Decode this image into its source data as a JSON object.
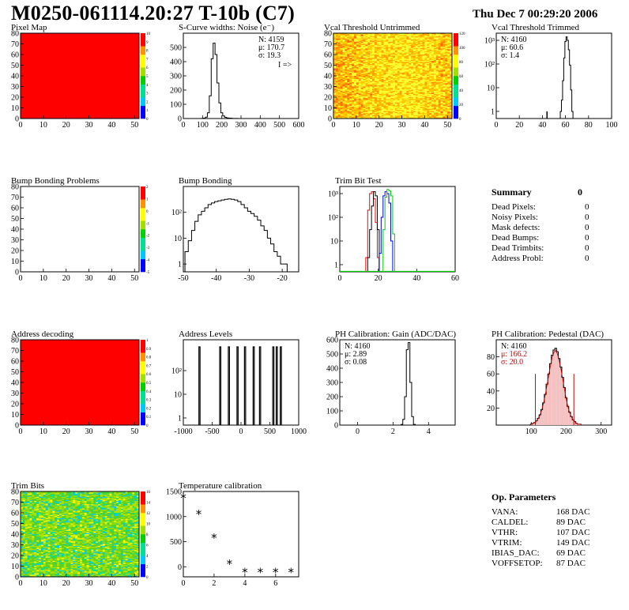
{
  "header": {
    "title": "M0250-061114.20:27 T-10b (C7)",
    "date": "Thu Dec  7 00:29:20 2006"
  },
  "colors": {
    "map_red": "#ff0000",
    "trim_red": "#ff0000",
    "trim_blue": "#0000ff",
    "trim_green": "#00d000",
    "fit_red": "#cc0000"
  },
  "summary": {
    "title": "Summary",
    "total": "0",
    "rows": [
      {
        "label": "Dead Pixels:",
        "value": "0"
      },
      {
        "label": "Noisy Pixels:",
        "value": "0"
      },
      {
        "label": "Mask defects:",
        "value": "0"
      },
      {
        "label": "Dead Bumps:",
        "value": "0"
      },
      {
        "label": "Dead Trimbits:",
        "value": "0"
      },
      {
        "label": "Address Probl:",
        "value": "0"
      }
    ]
  },
  "op_params": {
    "title": "Op. Parameters",
    "rows": [
      {
        "label": "VANA:",
        "value": "168 DAC"
      },
      {
        "label": "CALDEL:",
        "value": "89 DAC"
      },
      {
        "label": "VTHR:",
        "value": "107 DAC"
      },
      {
        "label": "VTRIM:",
        "value": "149 DAC"
      },
      {
        "label": "IBIAS_DAC:",
        "value": "69 DAC"
      },
      {
        "label": "VOFFSETOP:",
        "value": "87 DAC"
      }
    ]
  },
  "chart_data": [
    {
      "id": "pixel-map",
      "type": "heatmap",
      "title": "Pixel Map",
      "xlim": [
        0,
        52
      ],
      "ylim": [
        0,
        80
      ],
      "xticks": [
        0,
        10,
        20,
        30,
        40,
        50
      ],
      "xtick_labels": [
        "0",
        "10",
        "20",
        "30",
        "40",
        "50"
      ],
      "yticks": [
        0,
        10,
        20,
        30,
        40,
        50,
        60,
        70,
        80
      ],
      "ytick_labels": [
        "0",
        "10",
        "20",
        "30",
        "40",
        "50",
        "60",
        "70",
        "80"
      ],
      "fill": "uniform-red",
      "palette_labels": [
        "0",
        "1",
        "2",
        "3",
        "4",
        "5",
        "6",
        "7",
        "8",
        "9",
        "10"
      ],
      "zlim": [
        0,
        10
      ]
    },
    {
      "id": "scurve",
      "type": "bar",
      "title": "S-Curve widths: Noise (e⁻)",
      "xlim": [
        0,
        600
      ],
      "ylim": [
        0,
        600
      ],
      "xticks": [
        0,
        100,
        200,
        300,
        400,
        500,
        600
      ],
      "xtick_labels": [
        "0",
        "100",
        "200",
        "300",
        "400",
        "500",
        "600"
      ],
      "yticks": [
        0,
        100,
        200,
        300,
        400,
        500
      ],
      "ytick_labels": [
        "0",
        "100",
        "200",
        "300",
        "400",
        "500"
      ],
      "x": [
        100,
        110,
        120,
        130,
        140,
        150,
        160,
        170,
        180,
        190,
        200,
        210,
        220,
        230,
        240,
        250,
        260,
        270,
        280,
        290,
        300
      ],
      "values": [
        1,
        3,
        10,
        40,
        160,
        420,
        530,
        450,
        250,
        110,
        40,
        18,
        8,
        4,
        3,
        2,
        1,
        1,
        1,
        0,
        0
      ],
      "stats": [
        "N: 4159",
        "μ: 170.7",
        "σ: 19.3"
      ],
      "note": "I =>"
    },
    {
      "id": "vcal-untrimmed",
      "type": "heatmap",
      "title": "Vcal Threshold Untrimmed",
      "xlim": [
        0,
        52
      ],
      "ylim": [
        0,
        80
      ],
      "xticks": [
        0,
        10,
        20,
        30,
        40,
        50
      ],
      "xtick_labels": [
        "0",
        "10",
        "20",
        "30",
        "40",
        "50"
      ],
      "yticks": [
        0,
        10,
        20,
        30,
        40,
        50,
        60,
        70,
        80
      ],
      "ytick_labels": [
        "0",
        "10",
        "20",
        "30",
        "40",
        "50",
        "60",
        "70",
        "80"
      ],
      "fill": "noise-orange-yellow",
      "palette_labels": [
        "0",
        "20",
        "40",
        "60",
        "80",
        "100",
        "120"
      ],
      "zlim": [
        0,
        130
      ]
    },
    {
      "id": "vcal-trimmed",
      "type": "bar",
      "title": "Vcal Threshold Trimmed",
      "log": true,
      "xlim": [
        0,
        100
      ],
      "ylim": [
        0.5,
        2000
      ],
      "xticks": [
        0,
        20,
        40,
        60,
        80,
        100
      ],
      "xtick_labels": [
        "0",
        "20",
        "40",
        "60",
        "80",
        "100"
      ],
      "yticks": [
        1,
        10,
        100,
        1000
      ],
      "ytick_labels": [
        "1",
        "10",
        "10²",
        "10³"
      ],
      "x": [
        44,
        56,
        57,
        58,
        59,
        60,
        61,
        62,
        63,
        64,
        65,
        66
      ],
      "values": [
        1,
        1,
        3,
        20,
        180,
        900,
        1400,
        1000,
        400,
        90,
        8,
        1
      ],
      "stats": [
        "N: 4160",
        "μ: 60.6",
        "σ:  1.4"
      ]
    },
    {
      "id": "bump-problems",
      "type": "heatmap",
      "title": "Bump Bonding Problems",
      "xlim": [
        0,
        52
      ],
      "ylim": [
        0,
        80
      ],
      "xticks": [
        0,
        10,
        20,
        30,
        40,
        50
      ],
      "xtick_labels": [
        "0",
        "10",
        "20",
        "30",
        "40",
        "50"
      ],
      "yticks": [
        0,
        10,
        20,
        30,
        40,
        50,
        60,
        70,
        80
      ],
      "ytick_labels": [
        "0",
        "10",
        "20",
        "30",
        "40",
        "50",
        "60",
        "70",
        "80"
      ],
      "fill": "empty",
      "palette_labels": [
        "-5",
        "-4",
        "-3",
        "-2",
        "-1",
        "0",
        "1",
        "2"
      ],
      "zlim": [
        -5,
        2
      ]
    },
    {
      "id": "bump-bonding",
      "type": "bar",
      "title": "Bump Bonding",
      "log": true,
      "xlim": [
        -50,
        -15
      ],
      "ylim": [
        0.5,
        1000
      ],
      "xticks": [
        -50,
        -40,
        -30,
        -20
      ],
      "xtick_labels": [
        "-50",
        "-40",
        "-30",
        "-20"
      ],
      "yticks": [
        1,
        10,
        100
      ],
      "ytick_labels": [
        "1",
        "10",
        "10²"
      ],
      "x": [
        -49,
        -48,
        -47,
        -46,
        -45,
        -44,
        -43,
        -42,
        -41,
        -40,
        -39,
        -38,
        -37,
        -36,
        -35,
        -34,
        -33,
        -32,
        -31,
        -30,
        -29,
        -28,
        -27,
        -26,
        -25,
        -24,
        -23,
        -22,
        -21,
        -20,
        -19,
        -18
      ],
      "values": [
        3,
        8,
        20,
        45,
        80,
        110,
        150,
        200,
        230,
        260,
        280,
        300,
        320,
        330,
        320,
        300,
        260,
        200,
        150,
        110,
        90,
        70,
        50,
        30,
        20,
        10,
        6,
        3,
        2,
        1,
        1,
        0
      ],
      "stats": []
    },
    {
      "id": "trim-bit",
      "type": "line",
      "title": "Trim Bit Test",
      "log": true,
      "xlim": [
        0,
        60
      ],
      "ylim": [
        0.5,
        2000
      ],
      "xticks": [
        0,
        20,
        40,
        60
      ],
      "xtick_labels": [
        "0",
        "20",
        "40",
        "60"
      ],
      "yticks": [
        1,
        10,
        100,
        1000
      ],
      "ytick_labels": [
        "1",
        "10",
        "10²",
        "10³"
      ],
      "x": [
        10,
        11,
        12,
        13,
        14,
        15,
        16,
        17,
        18,
        19,
        20,
        21,
        22,
        23,
        24,
        25,
        26,
        27,
        28,
        29,
        30
      ],
      "series": [
        {
          "values": [
            0,
            0,
            0,
            0,
            2,
            200,
            1000,
            1200,
            600,
            60,
            2,
            0,
            0,
            0,
            0,
            0,
            0,
            0,
            0,
            0,
            0
          ]
        },
        {
          "values": [
            0,
            0,
            0,
            0,
            0,
            2,
            30,
            300,
            1200,
            800,
            30,
            0,
            0,
            0,
            0,
            0,
            0,
            0,
            0,
            0,
            0
          ]
        },
        {
          "values": [
            0,
            0,
            0,
            0,
            0,
            0,
            0,
            0,
            0,
            0,
            0,
            3,
            100,
            800,
            1200,
            1000,
            400,
            10,
            0,
            0,
            0
          ]
        },
        {
          "values": [
            0,
            0,
            0,
            0,
            0,
            0,
            0,
            0,
            0,
            0,
            0,
            0,
            0,
            30,
            700,
            1500,
            1300,
            800,
            20,
            0,
            0
          ]
        }
      ],
      "stats": []
    },
    {
      "id": "address-decoding",
      "type": "heatmap",
      "title": "Address decoding",
      "xlim": [
        0,
        52
      ],
      "ylim": [
        0,
        80
      ],
      "xticks": [
        0,
        10,
        20,
        30,
        40,
        50
      ],
      "xtick_labels": [
        "0",
        "10",
        "20",
        "30",
        "40",
        "50"
      ],
      "yticks": [
        0,
        10,
        20,
        30,
        40,
        50,
        60,
        70,
        80
      ],
      "ytick_labels": [
        "0",
        "10",
        "20",
        "30",
        "40",
        "50",
        "60",
        "70",
        "80"
      ],
      "fill": "uniform-red",
      "palette_labels": [
        "0",
        "0.1",
        "0.2",
        "0.3",
        "0.4",
        "0.5",
        "0.6",
        "0.7",
        "0.8",
        "0.9",
        "1"
      ],
      "zlim": [
        0,
        1
      ]
    },
    {
      "id": "address-levels",
      "type": "bar",
      "title": "Address Levels",
      "log": true,
      "xlim": [
        -1000,
        1000
      ],
      "ylim": [
        0.5,
        2000
      ],
      "xticks": [
        -1000,
        -500,
        0,
        500,
        1000
      ],
      "xtick_labels": [
        "-1000",
        "-500",
        "0",
        "500",
        "1000"
      ],
      "yticks": [
        1,
        10,
        100
      ],
      "ytick_labels": [
        "1",
        "10",
        "10²"
      ],
      "peaks": [
        -720,
        -360,
        -210,
        -60,
        70,
        220,
        330,
        560,
        620,
        690
      ],
      "peak_height": 1000,
      "stats": []
    },
    {
      "id": "ph-gain",
      "type": "bar",
      "title": "PH Calibration: Gain (ADC/DAC)",
      "xlim": [
        -1,
        5.5
      ],
      "ylim": [
        0,
        600
      ],
      "xticks": [
        0,
        2,
        4
      ],
      "xtick_labels": [
        "0",
        "2",
        "4"
      ],
      "yticks": [
        0,
        100,
        200,
        300,
        400,
        500,
        600
      ],
      "ytick_labels": [
        "0",
        "100",
        "200",
        "300",
        "400",
        "500",
        "600"
      ],
      "x": [
        2.5,
        2.6,
        2.7,
        2.8,
        2.9,
        3.0,
        3.1,
        3.2
      ],
      "values": [
        5,
        40,
        200,
        530,
        580,
        300,
        60,
        5
      ],
      "stats": [
        "N: 4160",
        "μ: 2.89",
        "σ: 0.08"
      ]
    },
    {
      "id": "ph-pedestal",
      "type": "bar",
      "title": "PH Calibration: Pedestal (DAC)",
      "xlim": [
        0,
        330
      ],
      "ylim": [
        0,
        100
      ],
      "xticks": [
        100,
        200,
        300
      ],
      "xtick_labels": [
        "100",
        "200",
        "300"
      ],
      "yticks": [
        20,
        40,
        60,
        80
      ],
      "ytick_labels": [
        "20",
        "40",
        "60",
        "80"
      ],
      "x": [
        100,
        105,
        110,
        115,
        120,
        125,
        130,
        135,
        140,
        145,
        150,
        155,
        160,
        165,
        170,
        175,
        180,
        185,
        190,
        195,
        200,
        205,
        210,
        215,
        220,
        225,
        230,
        235,
        240,
        245
      ],
      "values": [
        1,
        2,
        3,
        5,
        8,
        12,
        18,
        26,
        36,
        48,
        60,
        72,
        82,
        88,
        90,
        86,
        78,
        68,
        56,
        44,
        32,
        22,
        15,
        10,
        6,
        4,
        2,
        1,
        1,
        0
      ],
      "fit_lines": [
        112,
        222
      ],
      "stats": [
        "N: 4160",
        "μ: 166.2",
        "σ: 20.0"
      ]
    },
    {
      "id": "trim-bits-map",
      "type": "heatmap",
      "title": "Trim Bits",
      "xlim": [
        0,
        52
      ],
      "ylim": [
        0,
        80
      ],
      "xticks": [
        0,
        10,
        20,
        30,
        40,
        50
      ],
      "xtick_labels": [
        "0",
        "10",
        "20",
        "30",
        "40",
        "50"
      ],
      "yticks": [
        0,
        10,
        20,
        30,
        40,
        50,
        60,
        70,
        80
      ],
      "ytick_labels": [
        "0",
        "10",
        "20",
        "30",
        "40",
        "50",
        "60",
        "70",
        "80"
      ],
      "fill": "noise-green-yellow",
      "palette_labels": [
        "0",
        "2",
        "4",
        "6",
        "8",
        "10",
        "12",
        "14",
        "16"
      ],
      "zlim": [
        0,
        16
      ]
    },
    {
      "id": "temperature",
      "type": "scatter",
      "title": "Temperature calibration",
      "xlim": [
        0,
        7.5
      ],
      "ylim": [
        -200,
        1500
      ],
      "xticks": [
        0,
        2,
        4,
        6
      ],
      "xtick_labels": [
        "0",
        "2",
        "4",
        "6"
      ],
      "yticks": [
        0,
        500,
        1000,
        1500
      ],
      "ytick_labels": [
        "0",
        "500",
        "1000",
        "1500"
      ],
      "x": [
        0,
        1,
        2,
        3,
        4,
        5,
        6,
        7
      ],
      "values": [
        1370,
        1040,
        570,
        50,
        -110,
        -110,
        -110,
        -110
      ],
      "stats": []
    }
  ]
}
